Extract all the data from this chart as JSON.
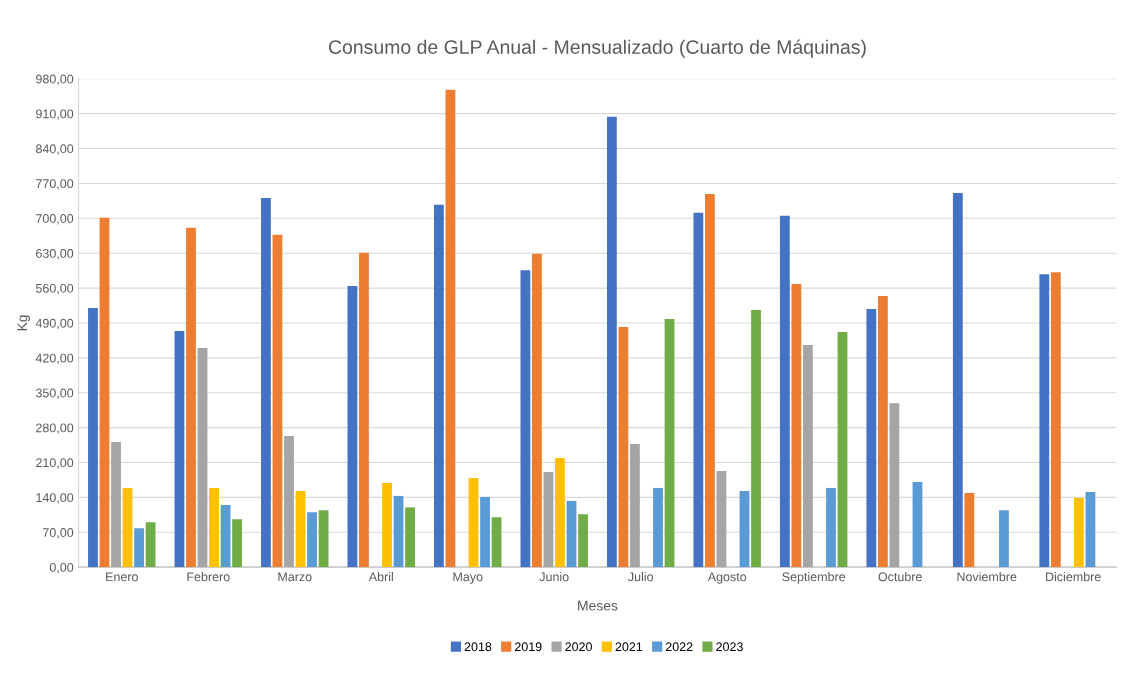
{
  "chart_data": {
    "type": "bar",
    "title": "Consumo de GLP Anual - Mensualizado (Cuarto de Máquinas)",
    "xlabel": "Meses",
    "ylabel": "Kg",
    "categories": [
      "Enero",
      "Febrero",
      "Marzo",
      "Abril",
      "Mayo",
      "Junio",
      "Julio",
      "Agosto",
      "Septiembre",
      "Octubre",
      "Noviembre",
      "Diciembre"
    ],
    "series": [
      {
        "name": "2018",
        "color": "#4472c4",
        "values": [
          520,
          474,
          741,
          564,
          727,
          596,
          904,
          711,
          705,
          518,
          751,
          588
        ]
      },
      {
        "name": "2019",
        "color": "#ed7d31",
        "values": [
          701,
          681,
          667,
          631,
          958,
          629,
          482,
          749,
          568,
          544,
          149,
          592
        ]
      },
      {
        "name": "2020",
        "color": "#a5a5a5",
        "values": [
          251,
          440,
          263,
          null,
          null,
          191,
          247,
          193,
          446,
          329,
          null,
          null
        ]
      },
      {
        "name": "2021",
        "color": "#ffc000",
        "values": [
          159,
          159,
          153,
          169,
          179,
          219,
          null,
          null,
          null,
          null,
          null,
          139
        ]
      },
      {
        "name": "2022",
        "color": "#5b9bd5",
        "values": [
          78,
          125,
          110,
          143,
          141,
          133,
          159,
          153,
          159,
          171,
          114,
          151
        ]
      },
      {
        "name": "2023",
        "color": "#70ad47",
        "values": [
          90,
          96,
          114,
          120,
          100,
          106,
          498,
          516,
          472,
          null,
          null,
          null
        ]
      }
    ],
    "ylim": [
      0,
      980
    ],
    "yticks": [
      {
        "value": 0,
        "label": "0,00"
      },
      {
        "value": 70,
        "label": "70,00"
      },
      {
        "value": 140,
        "label": "140,00"
      },
      {
        "value": 210,
        "label": "210,00"
      },
      {
        "value": 280,
        "label": "280,00"
      },
      {
        "value": 350,
        "label": "350,00"
      },
      {
        "value": 420,
        "label": "420,00"
      },
      {
        "value": 490,
        "label": "490,00"
      },
      {
        "value": 560,
        "label": "560,00"
      },
      {
        "value": 630,
        "label": "630,00"
      },
      {
        "value": 700,
        "label": "700,00"
      },
      {
        "value": 770,
        "label": "770,00"
      },
      {
        "value": 840,
        "label": "840,00"
      },
      {
        "value": 910,
        "label": "910,00"
      },
      {
        "value": 980,
        "label": "980,00"
      }
    ],
    "grid": "y",
    "legend": "bottom"
  }
}
